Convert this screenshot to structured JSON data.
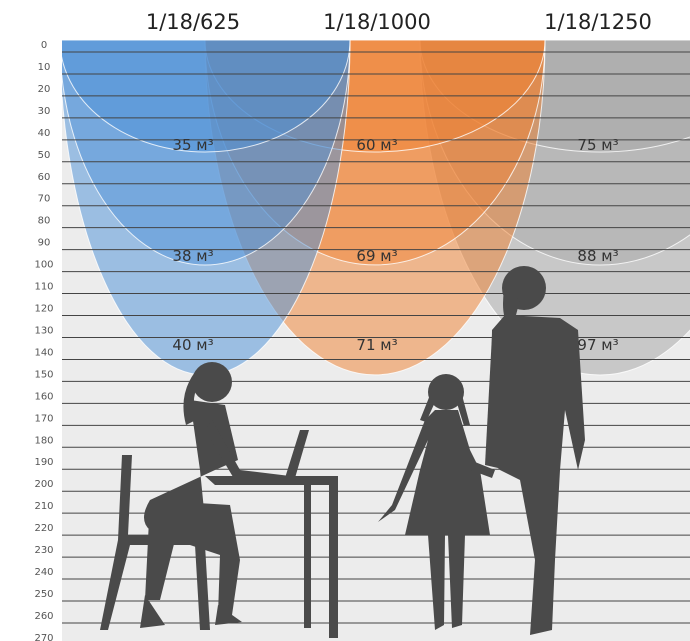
{
  "columns": [
    "1/18/625",
    "1/18/1000",
    "1/18/1250"
  ],
  "rows": [
    0,
    10,
    20,
    30,
    40,
    50,
    60,
    70,
    80,
    90,
    100,
    110,
    120,
    130,
    140,
    150,
    160,
    170,
    180,
    190,
    200,
    210,
    220,
    230,
    240,
    250,
    260,
    270
  ],
  "volumes": [
    [
      "35 м³",
      "60 м³",
      "75 м³"
    ],
    [
      "38 м³",
      "69 м³",
      "88 м³"
    ],
    [
      "40 м³",
      "71 м³",
      "97 м³"
    ]
  ]
}
